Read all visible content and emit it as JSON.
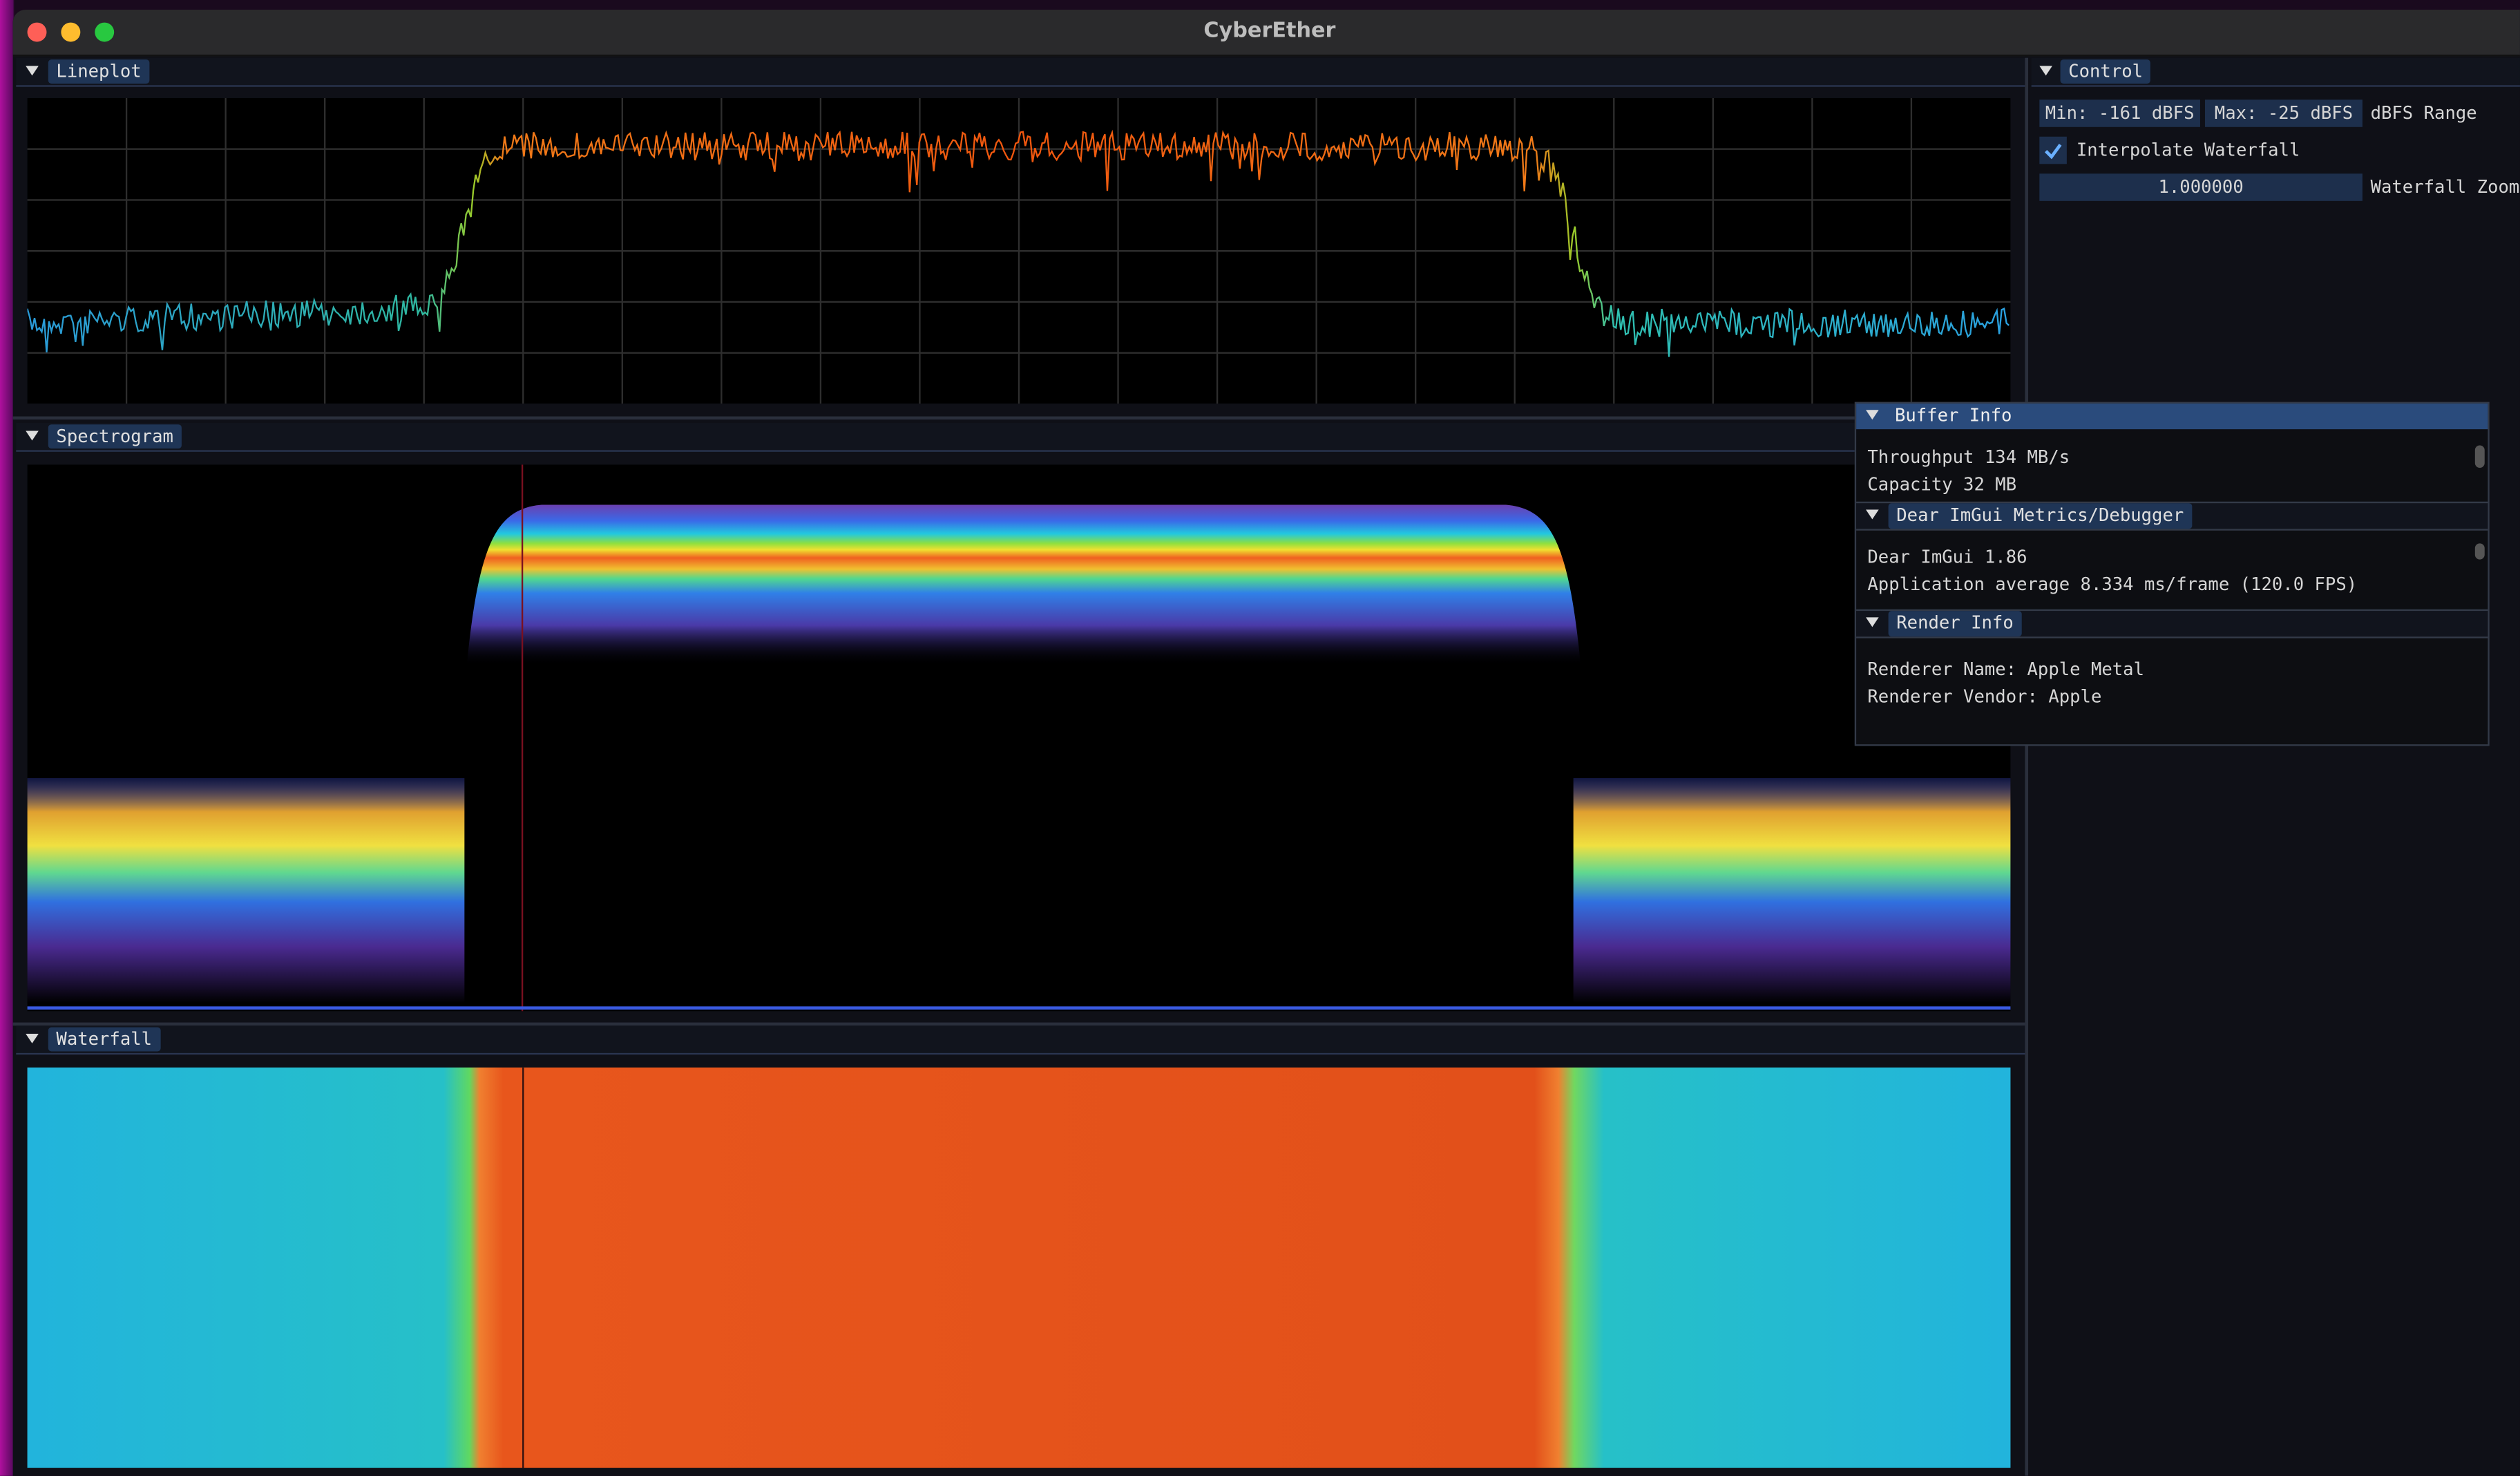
{
  "window": {
    "title": "CyberEther"
  },
  "panels": {
    "lineplot": {
      "title": "Lineplot"
    },
    "spectrogram": {
      "title": "Spectrogram"
    },
    "waterfall": {
      "title": "Waterfall"
    }
  },
  "control": {
    "title": "Control",
    "min": "Min: -161 dBFS",
    "max": "Max: -25 dBFS",
    "range_label": "dBFS Range",
    "interpolate": "Interpolate Waterfall",
    "zoom_value": "1.000000",
    "zoom_label": "Waterfall Zoom"
  },
  "buffer_info": {
    "title": "Buffer Info",
    "lines": [
      "Throughput 134 MB/s",
      "Capacity 32 MB"
    ]
  },
  "metrics": {
    "title": "Dear ImGui Metrics/Debugger",
    "lines": [
      "Dear ImGui 1.86",
      "Application average 8.334 ms/frame (120.0 FPS)"
    ]
  },
  "render_info": {
    "title": "Render Info",
    "lines": [
      "Renderer Name: Apple Metal",
      "Renderer Vendor: Apple"
    ]
  }
}
